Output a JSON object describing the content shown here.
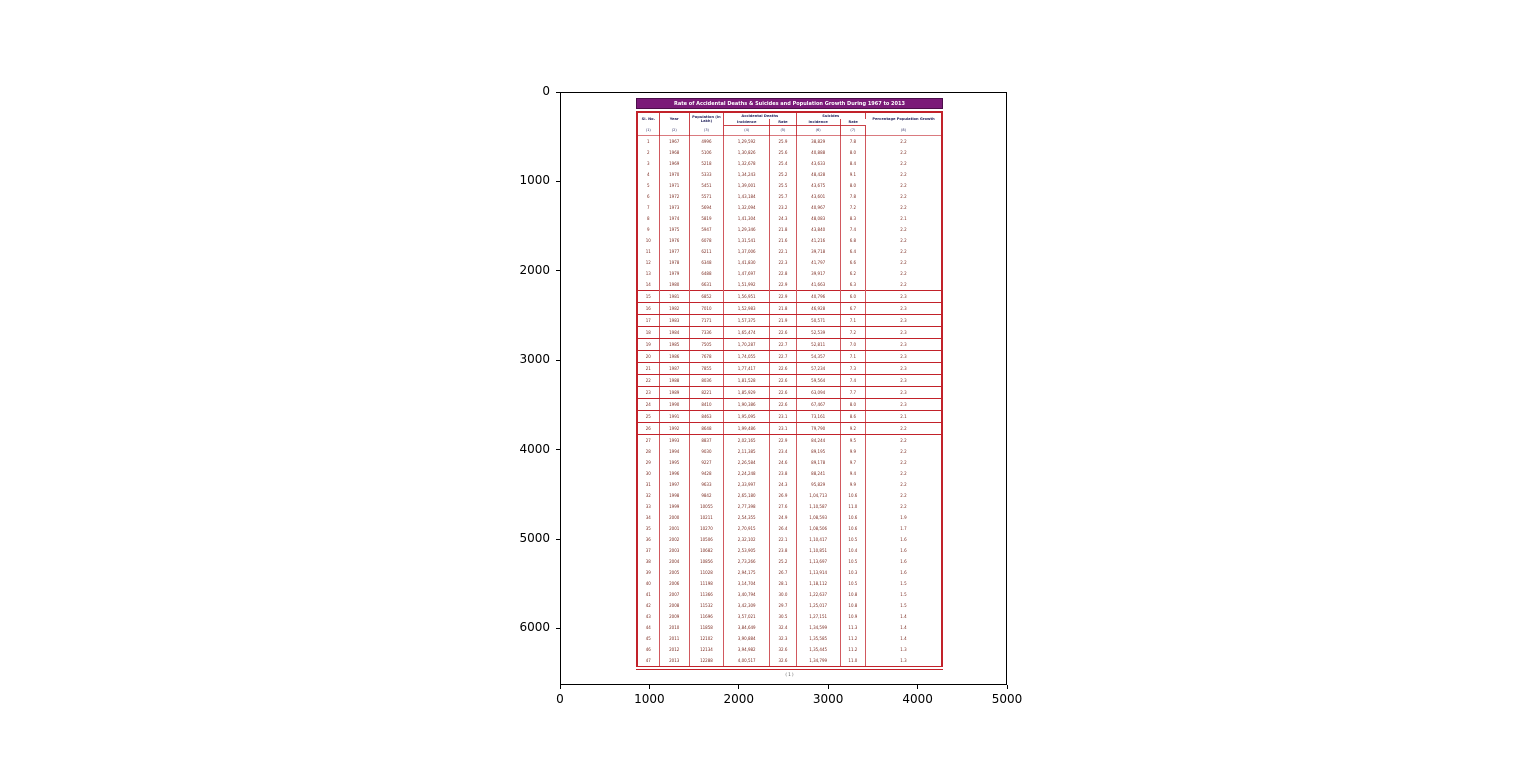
{
  "figure": {
    "x_ticks": [
      "0",
      "1000",
      "2000",
      "3000",
      "4000",
      "5000"
    ],
    "y_ticks": [
      "0",
      "1000",
      "2000",
      "3000",
      "4000",
      "5000",
      "6000"
    ]
  },
  "colors": {
    "title_bg": "#7b1a78",
    "table_border": "#c2222a",
    "data_text": "#7b2a20",
    "header_text": "#26265e"
  },
  "chart_data": {
    "type": "table",
    "title": "Rate of Accidental Deaths & Suicides and Population Growth During 1967 to 2013",
    "caption": "( 1 )",
    "headers": {
      "sl_no": "Sl. No.",
      "year": "Year",
      "population": "Population (in Lakh)",
      "accidental_deaths": "Accidental Deaths",
      "suicides": "Suicides",
      "incidence": "Incidence",
      "rate": "Rate",
      "growth": "Percentage Population Growth"
    },
    "column_numbers": [
      "(1)",
      "(2)",
      "(3)",
      "(4)",
      "(5)",
      "(6)",
      "(7)",
      "(8)"
    ],
    "rows": [
      [
        "1",
        "1967",
        "4996",
        "1,29,592",
        "25.9",
        "38,829",
        "7.8",
        "2.2"
      ],
      [
        "2",
        "1968",
        "5106",
        "1,30,826",
        "25.6",
        "40,888",
        "8.0",
        "2.2"
      ],
      [
        "3",
        "1969",
        "5218",
        "1,32,678",
        "25.4",
        "43,633",
        "8.4",
        "2.2"
      ],
      [
        "4",
        "1970",
        "5333",
        "1,34,243",
        "25.2",
        "48,428",
        "9.1",
        "2.2"
      ],
      [
        "5",
        "1971",
        "5451",
        "1,39,001",
        "25.5",
        "43,675",
        "8.0",
        "2.2"
      ],
      [
        "6",
        "1972",
        "5571",
        "1,43,184",
        "25.7",
        "43,601",
        "7.8",
        "2.2"
      ],
      [
        "7",
        "1973",
        "5694",
        "1,32,094",
        "23.2",
        "40,967",
        "7.2",
        "2.2"
      ],
      [
        "8",
        "1974",
        "5819",
        "1,41,304",
        "24.3",
        "48,083",
        "8.3",
        "2.1"
      ],
      [
        "9",
        "1975",
        "5947",
        "1,29,346",
        "21.8",
        "43,840",
        "7.4",
        "2.2"
      ],
      [
        "10",
        "1976",
        "6078",
        "1,31,541",
        "21.6",
        "41,216",
        "6.8",
        "2.2"
      ],
      [
        "11",
        "1977",
        "6211",
        "1,37,006",
        "22.1",
        "39,718",
        "6.4",
        "2.2"
      ],
      [
        "12",
        "1978",
        "6348",
        "1,41,830",
        "22.3",
        "41,797",
        "6.6",
        "2.2"
      ],
      [
        "13",
        "1979",
        "6488",
        "1,47,697",
        "22.8",
        "39,917",
        "6.2",
        "2.2"
      ],
      [
        "14",
        "1980",
        "6631",
        "1,51,992",
        "22.9",
        "41,663",
        "6.3",
        "2.2"
      ],
      [
        "15",
        "1981",
        "6852",
        "1,56,951",
        "22.9",
        "40,796",
        "6.0",
        "2.3"
      ],
      [
        "16",
        "1982",
        "7010",
        "1,52,983",
        "21.8",
        "46,928",
        "6.7",
        "2.3"
      ],
      [
        "17",
        "1983",
        "7171",
        "1,57,375",
        "21.9",
        "50,571",
        "7.1",
        "2.3"
      ],
      [
        "18",
        "1984",
        "7336",
        "1,65,474",
        "22.6",
        "52,539",
        "7.2",
        "2.3"
      ],
      [
        "19",
        "1985",
        "7505",
        "1,70,287",
        "22.7",
        "52,811",
        "7.0",
        "2.3"
      ],
      [
        "20",
        "1986",
        "7678",
        "1,74,055",
        "22.7",
        "54,357",
        "7.1",
        "2.3"
      ],
      [
        "21",
        "1987",
        "7855",
        "1,77,417",
        "22.6",
        "57,234",
        "7.3",
        "2.3"
      ],
      [
        "22",
        "1988",
        "8036",
        "1,81,528",
        "22.6",
        "59,564",
        "7.4",
        "2.3"
      ],
      [
        "23",
        "1989",
        "8221",
        "1,85,929",
        "22.6",
        "63,094",
        "7.7",
        "2.3"
      ],
      [
        "24",
        "1990",
        "8410",
        "1,90,386",
        "22.6",
        "67,467",
        "8.0",
        "2.3"
      ],
      [
        "25",
        "1991",
        "8463",
        "1,95,095",
        "23.1",
        "73,161",
        "8.6",
        "2.1"
      ],
      [
        "26",
        "1992",
        "8648",
        "1,99,486",
        "23.1",
        "79,790",
        "9.2",
        "2.2"
      ],
      [
        "27",
        "1993",
        "8837",
        "2,02,165",
        "22.9",
        "84,244",
        "9.5",
        "2.2"
      ],
      [
        "28",
        "1994",
        "9030",
        "2,11,385",
        "23.4",
        "89,195",
        "9.9",
        "2.2"
      ],
      [
        "29",
        "1995",
        "9227",
        "2,26,584",
        "24.6",
        "89,178",
        "9.7",
        "2.2"
      ],
      [
        "30",
        "1996",
        "9428",
        "2,24,248",
        "23.8",
        "88,241",
        "9.4",
        "2.2"
      ],
      [
        "31",
        "1997",
        "9633",
        "2,33,997",
        "24.3",
        "95,829",
        "9.9",
        "2.2"
      ],
      [
        "32",
        "1998",
        "9842",
        "2,65,180",
        "26.9",
        "1,04,713",
        "10.6",
        "2.2"
      ],
      [
        "33",
        "1999",
        "10055",
        "2,77,398",
        "27.6",
        "1,10,587",
        "11.0",
        "2.2"
      ],
      [
        "34",
        "2000",
        "10211",
        "2,54,355",
        "24.9",
        "1,08,593",
        "10.6",
        "1.9"
      ],
      [
        "35",
        "2001",
        "10270",
        "2,70,915",
        "26.4",
        "1,08,506",
        "10.6",
        "1.7"
      ],
      [
        "36",
        "2002",
        "10506",
        "2,32,102",
        "22.1",
        "1,10,417",
        "10.5",
        "1.6"
      ],
      [
        "37",
        "2003",
        "10682",
        "2,53,905",
        "23.8",
        "1,10,851",
        "10.4",
        "1.6"
      ],
      [
        "38",
        "2004",
        "10856",
        "2,73,266",
        "25.2",
        "1,13,697",
        "10.5",
        "1.6"
      ],
      [
        "39",
        "2005",
        "11028",
        "2,94,175",
        "26.7",
        "1,13,914",
        "10.3",
        "1.6"
      ],
      [
        "40",
        "2006",
        "11198",
        "3,14,704",
        "28.1",
        "1,18,112",
        "10.5",
        "1.5"
      ],
      [
        "41",
        "2007",
        "11366",
        "3,40,794",
        "30.0",
        "1,22,637",
        "10.8",
        "1.5"
      ],
      [
        "42",
        "2008",
        "11532",
        "3,42,309",
        "29.7",
        "1,25,017",
        "10.8",
        "1.5"
      ],
      [
        "43",
        "2009",
        "11696",
        "3,57,021",
        "30.5",
        "1,27,151",
        "10.9",
        "1.4"
      ],
      [
        "44",
        "2010",
        "11858",
        "3,84,649",
        "32.4",
        "1,34,599",
        "11.3",
        "1.4"
      ],
      [
        "45",
        "2011",
        "12102",
        "3,90,884",
        "32.3",
        "1,35,585",
        "11.2",
        "1.4"
      ],
      [
        "46",
        "2012",
        "12134",
        "3,94,982",
        "32.6",
        "1,35,445",
        "11.2",
        "1.3"
      ],
      [
        "47",
        "2013",
        "12288",
        "4,00,517",
        "32.6",
        "1,34,799",
        "11.0",
        "1.3"
      ]
    ]
  }
}
